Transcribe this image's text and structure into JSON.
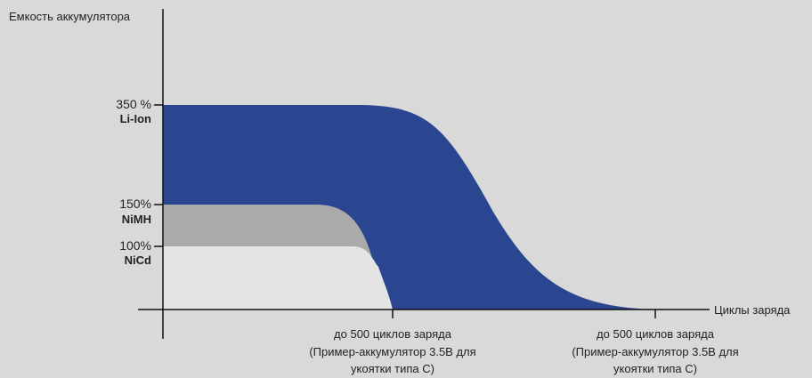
{
  "chart_data": {
    "type": "area",
    "ylabel": "Емкость аккумулятора",
    "xlabel": "Циклы заряда",
    "x_ticks": [
      {
        "lines": [
          "до 500 циклов заряда",
          "(Пример-аккумулятор 3.5В для",
          "укоятки типа С)"
        ]
      },
      {
        "lines": [
          "до 500 циклов заряда",
          "(Пример-аккумулятор 3.5В для",
          "укоятки типа С)"
        ]
      }
    ],
    "y_levels": [
      {
        "percent_label": "350 %",
        "name": "Li-Ion",
        "value": 350
      },
      {
        "percent_label": "150%",
        "name": "NiMH",
        "value": 150
      },
      {
        "percent_label": "100%",
        "name": "NiCd",
        "value": 100
      }
    ],
    "series": [
      {
        "name": "Li-Ion",
        "color": "#2a4690",
        "capacity": 350,
        "end_tick": 2
      },
      {
        "name": "NiMH",
        "color": "#aaaaaa",
        "capacity": 150,
        "end_tick": 1
      },
      {
        "name": "NiCd",
        "color": "#e4e4e4",
        "capacity": 100,
        "end_tick": 1
      }
    ],
    "grid": false,
    "legend": "none"
  }
}
